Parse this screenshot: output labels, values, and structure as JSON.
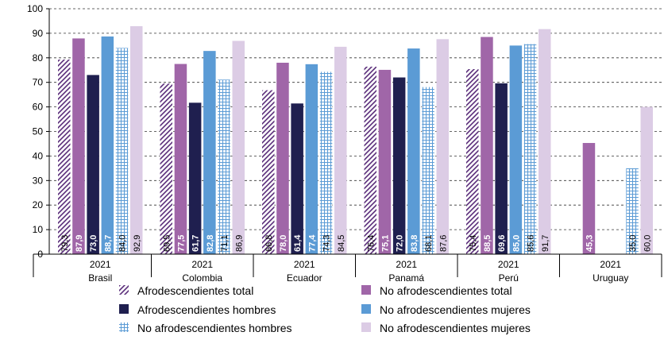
{
  "chart_data": {
    "type": "bar",
    "ylim": [
      0,
      100
    ],
    "yticks": [
      0,
      10,
      20,
      30,
      40,
      50,
      60,
      70,
      80,
      90,
      100
    ],
    "grid": "horizontal-dashed",
    "legend_position": "bottom",
    "categories": [
      {
        "year": "2021",
        "country": "Brasil"
      },
      {
        "year": "2021",
        "country": "Colombia"
      },
      {
        "year": "2021",
        "country": "Ecuador"
      },
      {
        "year": "2021",
        "country": "Panamá"
      },
      {
        "year": "2021",
        "country": "Perú"
      },
      {
        "year": "2021",
        "country": "Uruguay"
      }
    ],
    "series": [
      {
        "name": "Afrodescendientes total",
        "style": "hatch",
        "color": "#5a2d7a",
        "values": [
          79.3,
          69.5,
          66.8,
          76.4,
          75.4,
          null
        ],
        "labels": [
          "79,3",
          "69,5",
          "66,8",
          "76,4",
          "75,4",
          ""
        ]
      },
      {
        "name": "No afrodescendientes total",
        "style": "solid",
        "color": "#a066a8",
        "values": [
          87.9,
          77.5,
          78.0,
          75.1,
          88.5,
          45.3
        ],
        "labels": [
          "87,9",
          "77,5",
          "78,0",
          "75,1",
          "88,5",
          "45,3"
        ]
      },
      {
        "name": "Afrodescendientes hombres",
        "style": "solid",
        "color": "#1f1f4f",
        "values": [
          73.0,
          61.7,
          61.4,
          72.0,
          69.6,
          null
        ],
        "labels": [
          "73,0",
          "61,7",
          "61,4",
          "72,0",
          "69,6",
          ""
        ]
      },
      {
        "name": "No afrodescendientes mujeres",
        "style": "solid",
        "color": "#5b9bd5",
        "values": [
          88.7,
          82.8,
          77.4,
          83.8,
          85.0,
          null
        ],
        "labels": [
          "88,7",
          "82,8",
          "77,4",
          "83,8",
          "85,0",
          ""
        ]
      },
      {
        "name": "No afrodescendientes hombres",
        "style": "grid",
        "color": "#5b9bd5",
        "values": [
          84.0,
          71.1,
          74.3,
          68.1,
          85.6,
          35.0
        ],
        "labels": [
          "84,0",
          "71,1",
          "74,3",
          "68,1",
          "85,6",
          "35,0"
        ]
      },
      {
        "name": "No afrodescendientes mujeres",
        "style": "solid",
        "color": "#dccce5",
        "values": [
          92.9,
          86.9,
          84.5,
          87.6,
          91.7,
          60.0
        ],
        "labels": [
          "92,9",
          "86,9",
          "84,5",
          "87,6",
          "91,7",
          "60,0"
        ]
      }
    ],
    "legend_order": [
      0,
      1,
      2,
      3,
      4,
      5
    ]
  }
}
